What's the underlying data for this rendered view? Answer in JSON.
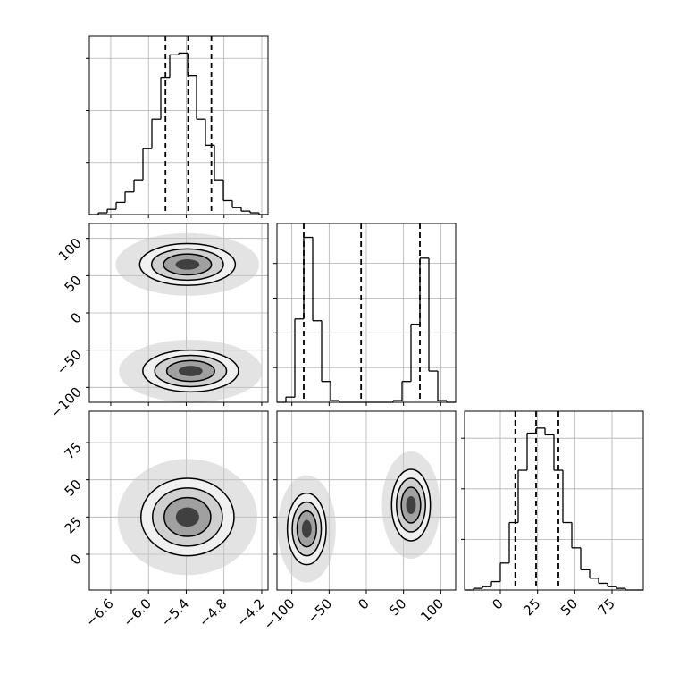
{
  "chart_data": {
    "type": "corner",
    "grid": true,
    "color": "#000000",
    "params": [
      {
        "lim": [
          -6.94,
          -4.1
        ],
        "ticks": [
          {
            "value": -6.6,
            "label": "−6.6"
          },
          {
            "value": -6.0,
            "label": "−6.0"
          },
          {
            "value": -5.4,
            "label": "−5.4"
          },
          {
            "value": -4.8,
            "label": "−4.8"
          },
          {
            "value": -4.2,
            "label": "−4.2"
          }
        ],
        "bins": [
          -6.94,
          -6.798,
          -6.656,
          -6.514,
          -6.372,
          -6.23,
          -6.088,
          -5.946,
          -5.804,
          -5.662,
          -5.52,
          -5.378,
          -5.236,
          -5.094,
          -4.952,
          -4.81,
          -4.668,
          -4.526,
          -4.384,
          -4.242,
          -4.1
        ],
        "counts": [
          0,
          1,
          3,
          7,
          13,
          20,
          38,
          55,
          79,
          92,
          93,
          80,
          55,
          40,
          20,
          8,
          4,
          2,
          1,
          0
        ],
        "hist_ylim": [
          0,
          103
        ],
        "hist_yticks": [
          30,
          60,
          90
        ],
        "quantiles": [
          -5.73,
          -5.37,
          -5.0
        ]
      },
      {
        "lim": [
          -120,
          120
        ],
        "ticks": [
          {
            "value": -100,
            "label": "−100"
          },
          {
            "value": -50,
            "label": "−50"
          },
          0,
          50,
          100
        ],
        "bins": [
          -120,
          -108,
          -96,
          -84,
          -72,
          -60,
          -48,
          -36,
          -24,
          -12,
          0,
          12,
          24,
          36,
          48,
          60,
          72,
          84,
          96,
          108,
          120
        ],
        "counts": [
          0,
          3,
          48,
          95,
          47,
          12,
          1,
          0,
          0,
          0,
          0,
          0,
          0,
          1,
          12,
          45,
          83,
          18,
          1,
          0
        ],
        "hist_ylim": [
          0,
          103
        ],
        "hist_yticks": [
          20,
          40,
          60,
          80
        ],
        "quantiles": [
          -84,
          -7,
          72
        ]
      },
      {
        "lim": [
          -24,
          96
        ],
        "ticks": [
          0,
          25,
          50,
          75
        ],
        "bins": [
          -24,
          -18,
          -12,
          -6,
          0,
          6,
          12,
          18,
          24,
          30,
          36,
          42,
          48,
          54,
          60,
          66,
          72,
          78,
          84,
          90,
          96
        ],
        "counts": [
          0,
          1,
          2,
          5,
          16,
          40,
          71,
          93,
          96,
          92,
          71,
          40,
          25,
          12,
          7,
          4,
          2,
          1,
          0,
          0
        ],
        "hist_ylim": [
          0,
          106
        ],
        "hist_yticks": [
          30,
          60,
          90
        ],
        "quantiles": [
          10,
          24,
          39
        ]
      }
    ],
    "pairs": [
      {
        "x": 0,
        "y": 1,
        "modes": [
          {
            "cx": -5.38,
            "cy": 65,
            "sx": 0.38,
            "sy": 14
          },
          {
            "cx": -5.33,
            "cy": -78,
            "sx": 0.38,
            "sy": 14
          }
        ]
      },
      {
        "x": 0,
        "y": 2,
        "modes": [
          {
            "cx": -5.38,
            "cy": 25,
            "sx": 0.37,
            "sy": 13
          }
        ]
      },
      {
        "x": 1,
        "y": 2,
        "modes": [
          {
            "cx": -80,
            "cy": 17,
            "sx": 13,
            "sy": 12
          },
          {
            "cx": 60,
            "cy": 33,
            "sx": 13,
            "sy": 12
          }
        ]
      }
    ]
  }
}
